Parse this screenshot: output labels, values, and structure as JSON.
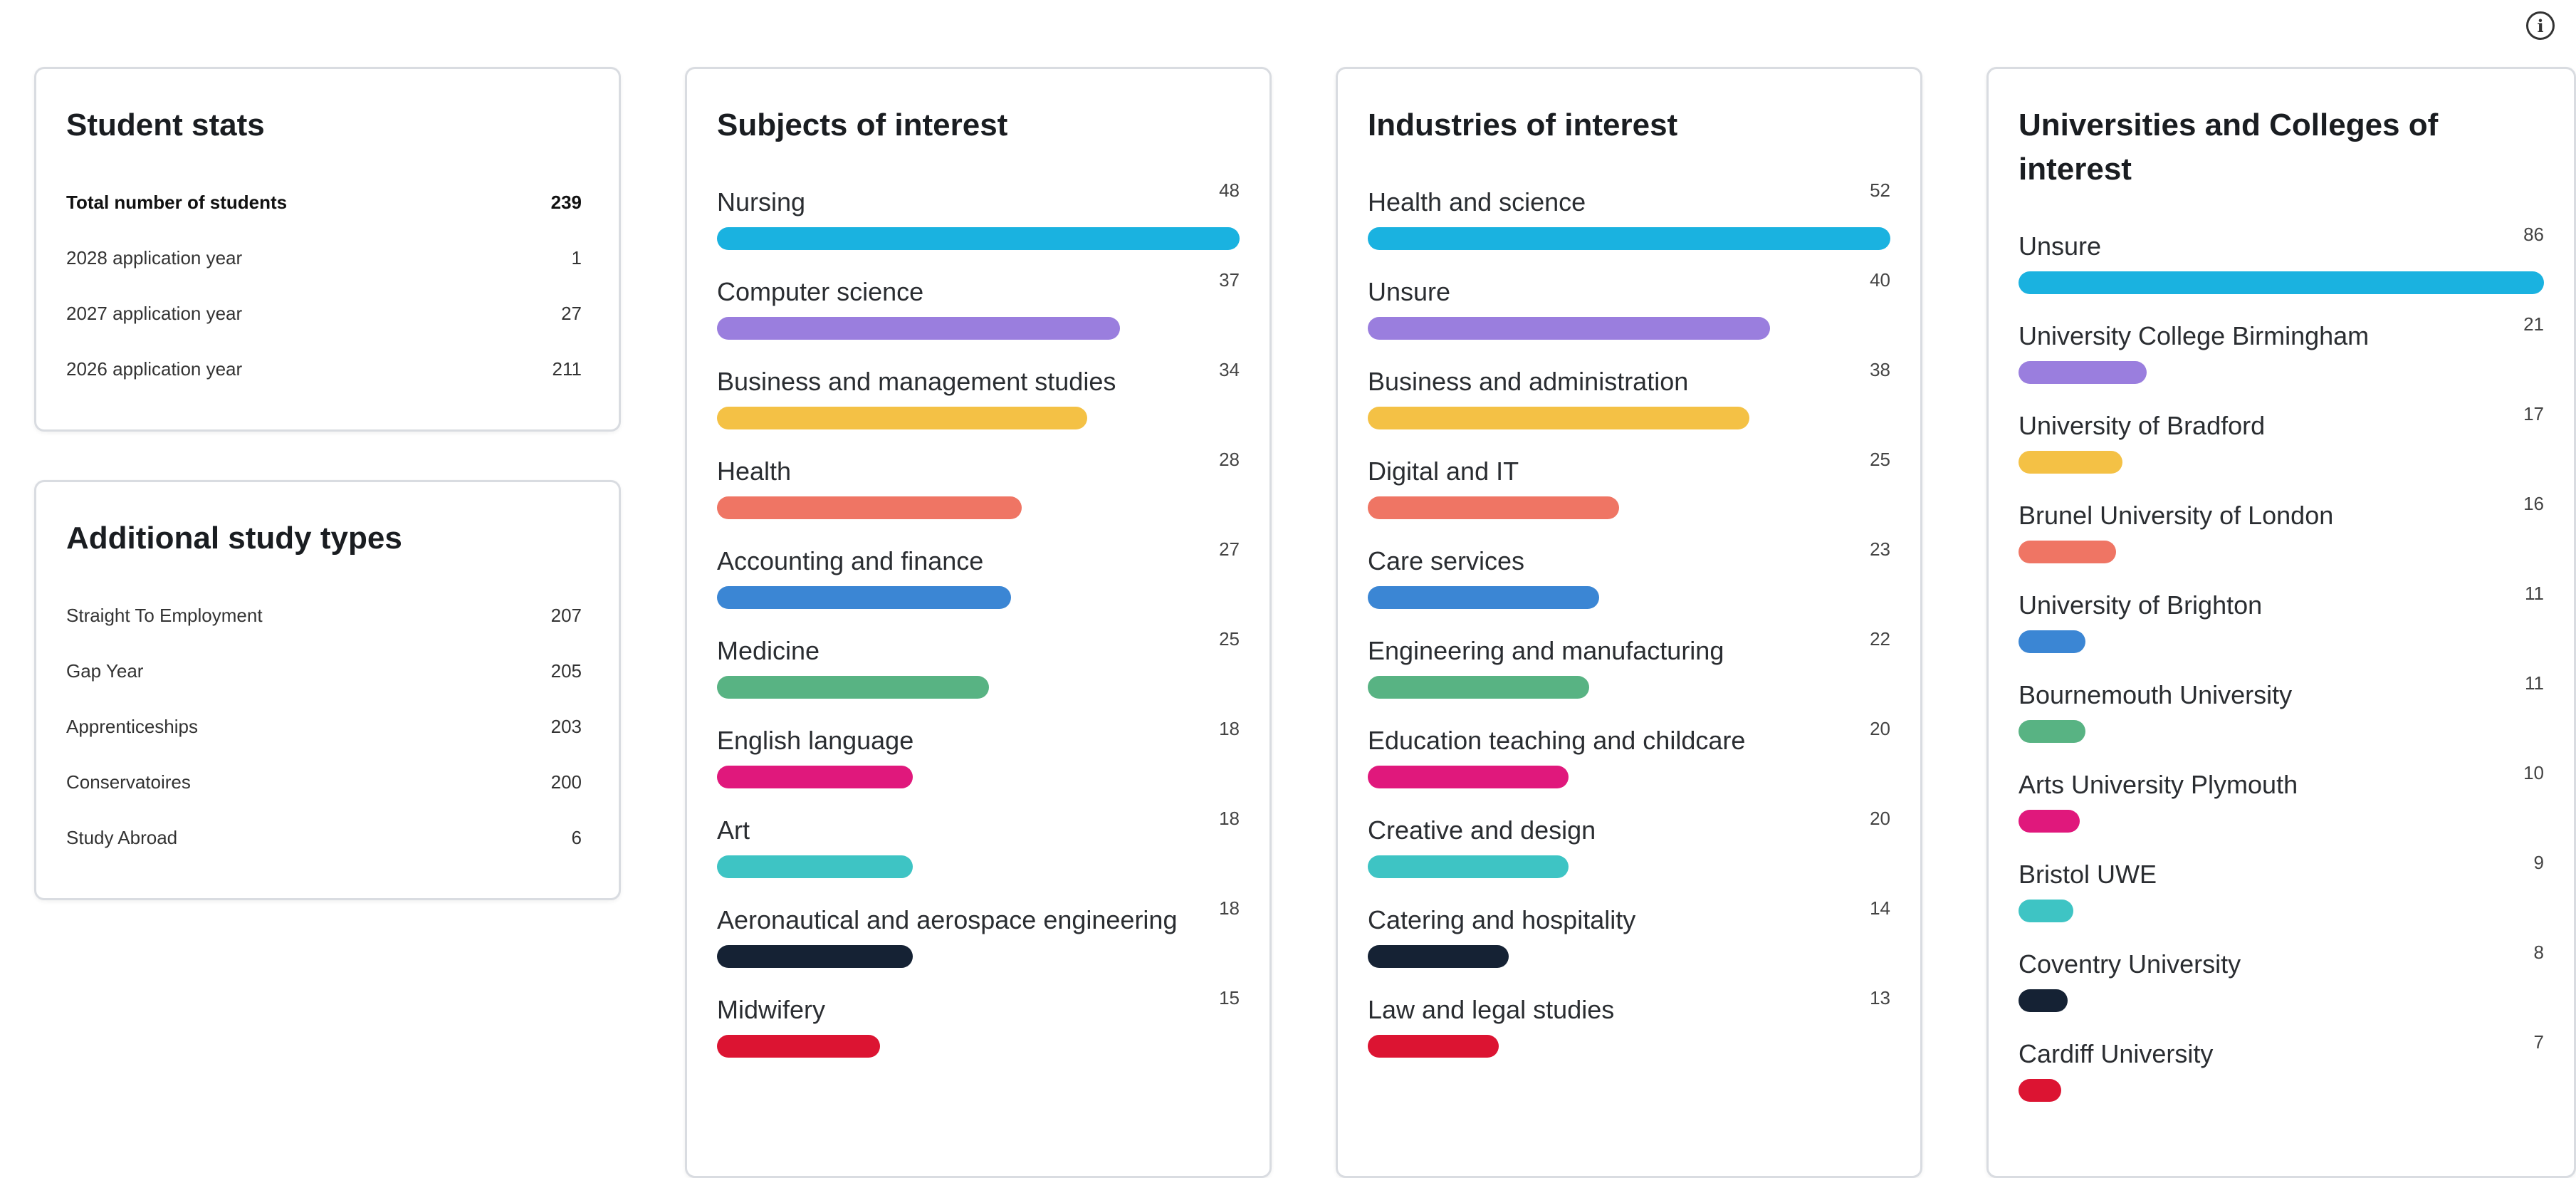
{
  "info_icon_glyph": "i",
  "student_stats": {
    "title": "Student stats",
    "rows": [
      {
        "label": "Total number of students",
        "value": "239",
        "bold": true
      },
      {
        "label": "2028 application year",
        "value": "1"
      },
      {
        "label": "2027 application year",
        "value": "27"
      },
      {
        "label": "2026 application year",
        "value": "211"
      }
    ]
  },
  "additional_study": {
    "title": "Additional study types",
    "rows": [
      {
        "label": "Straight To Employment",
        "value": "207"
      },
      {
        "label": "Gap Year",
        "value": "205"
      },
      {
        "label": "Apprenticeships",
        "value": "203"
      },
      {
        "label": "Conservatoires",
        "value": "200"
      },
      {
        "label": "Study Abroad",
        "value": "6"
      }
    ]
  },
  "bar_colors": [
    "#1ab2e0",
    "#9a7ede",
    "#f4c145",
    "#ef7564",
    "#3b86d4",
    "#58b383",
    "#e0187c",
    "#3ec4c4",
    "#152234",
    "#dc1432"
  ],
  "subjects": {
    "title": "Subjects of interest",
    "items": [
      {
        "label": "Nursing",
        "value": "48"
      },
      {
        "label": "Computer science",
        "value": "37"
      },
      {
        "label": "Business and management studies",
        "value": "34"
      },
      {
        "label": "Health",
        "value": "28"
      },
      {
        "label": "Accounting and finance",
        "value": "27"
      },
      {
        "label": "Medicine",
        "value": "25"
      },
      {
        "label": "English language",
        "value": "18"
      },
      {
        "label": "Art",
        "value": "18"
      },
      {
        "label": "Aeronautical and aerospace engineering",
        "value": "18"
      },
      {
        "label": "Midwifery",
        "value": "15"
      }
    ]
  },
  "industries": {
    "title": "Industries of interest",
    "items": [
      {
        "label": "Health and science",
        "value": "52"
      },
      {
        "label": "Unsure",
        "value": "40"
      },
      {
        "label": "Business and administration",
        "value": "38"
      },
      {
        "label": "Digital and IT",
        "value": "25"
      },
      {
        "label": "Care services",
        "value": "23"
      },
      {
        "label": "Engineering and manufacturing",
        "value": "22"
      },
      {
        "label": "Education teaching and childcare",
        "value": "20"
      },
      {
        "label": "Creative and design",
        "value": "20"
      },
      {
        "label": "Catering and hospitality",
        "value": "14"
      },
      {
        "label": "Law and legal studies",
        "value": "13"
      }
    ]
  },
  "universities": {
    "title": "Universities and Colleges of interest",
    "items": [
      {
        "label": "Unsure",
        "value": "86"
      },
      {
        "label": "University College Birmingham",
        "value": "21"
      },
      {
        "label": "University of Bradford",
        "value": "17"
      },
      {
        "label": "Brunel University of London",
        "value": "16"
      },
      {
        "label": "University of Brighton",
        "value": "11"
      },
      {
        "label": "Bournemouth University",
        "value": "11"
      },
      {
        "label": "Arts University Plymouth",
        "value": "10"
      },
      {
        "label": "Bristol UWE",
        "value": "9"
      },
      {
        "label": "Coventry University",
        "value": "8"
      },
      {
        "label": "Cardiff University",
        "value": "7"
      }
    ]
  }
}
